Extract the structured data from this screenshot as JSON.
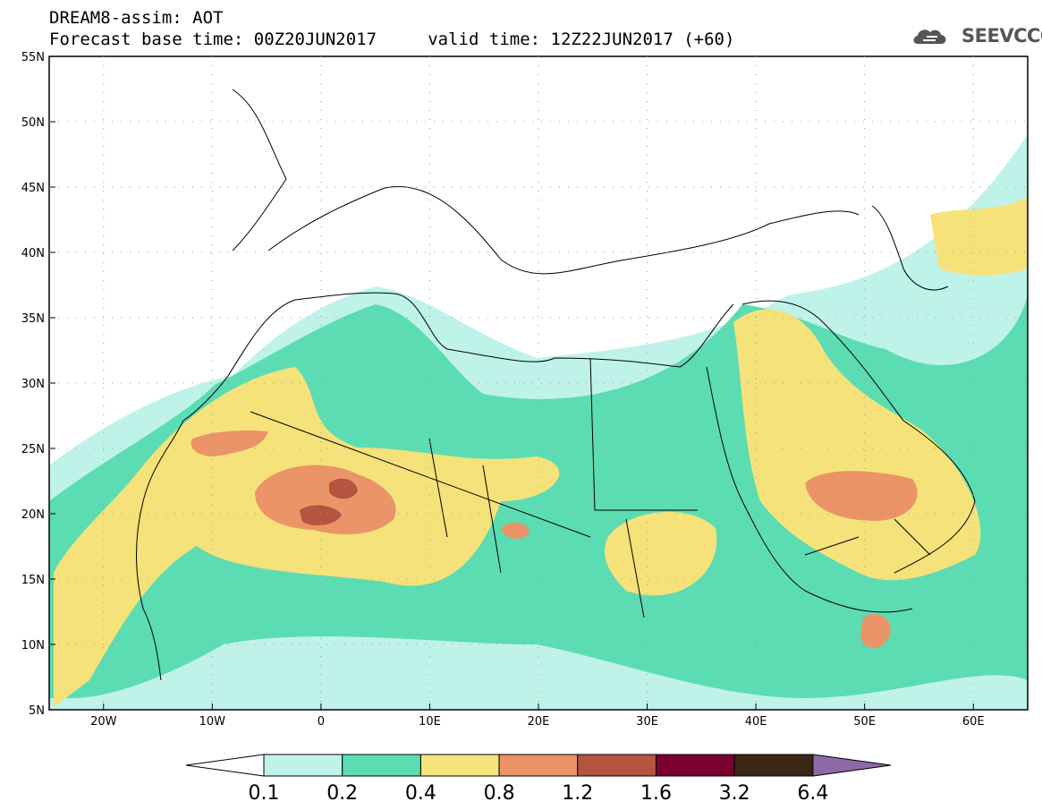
{
  "title": {
    "line1": "DREAM8-assim: AOT",
    "line2": "Forecast base time: 00Z20JUN2017     valid time: 12Z22JUN2017 (+60)"
  },
  "logo": {
    "text": "SEEVCCC",
    "icon": "cloud-icon"
  },
  "map": {
    "lon_range": [
      -25,
      65
    ],
    "lat_range": [
      5,
      55
    ],
    "lat_ticks": [
      {
        "value": 55,
        "label": "55N"
      },
      {
        "value": 50,
        "label": "50N"
      },
      {
        "value": 45,
        "label": "45N"
      },
      {
        "value": 40,
        "label": "40N"
      },
      {
        "value": 35,
        "label": "35N"
      },
      {
        "value": 30,
        "label": "30N"
      },
      {
        "value": 25,
        "label": "25N"
      },
      {
        "value": 20,
        "label": "20N"
      },
      {
        "value": 15,
        "label": "15N"
      },
      {
        "value": 10,
        "label": "10N"
      },
      {
        "value": 5,
        "label": "5N"
      }
    ],
    "lon_ticks": [
      {
        "value": -20,
        "label": "20W"
      },
      {
        "value": -10,
        "label": "10W"
      },
      {
        "value": 0,
        "label": "0"
      },
      {
        "value": 10,
        "label": "10E"
      },
      {
        "value": 20,
        "label": "20E"
      },
      {
        "value": 30,
        "label": "30E"
      },
      {
        "value": 40,
        "label": "40E"
      },
      {
        "value": 50,
        "label": "50E"
      },
      {
        "value": 60,
        "label": "60E"
      }
    ]
  },
  "colorbar": {
    "levels": [
      "0.1",
      "0.2",
      "0.4",
      "0.8",
      "1.2",
      "1.6",
      "3.2",
      "6.4"
    ],
    "colors": [
      "#ffffff",
      "#bff3e9",
      "#5cdcb3",
      "#f6e27a",
      "#eb9468",
      "#b45441",
      "#7a0030",
      "#3b2614",
      "#8e69a8"
    ]
  }
}
